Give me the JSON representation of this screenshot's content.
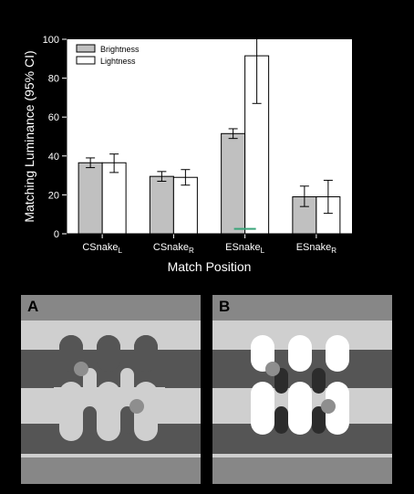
{
  "chart_data": {
    "type": "bar",
    "ylabel": "Matching Luminance (95% CI)",
    "xlabel": "Match Position",
    "ylim": [
      0,
      100
    ],
    "yticks": [
      "0",
      "20",
      "40",
      "60",
      "80",
      "100"
    ],
    "categories": [
      {
        "base": "CSnake",
        "sub": "L"
      },
      {
        "base": "CSnake",
        "sub": "R"
      },
      {
        "base": "ESnake",
        "sub": "L"
      },
      {
        "base": "ESnake",
        "sub": "R"
      }
    ],
    "series": [
      {
        "name": "Brightness",
        "color": "#c0c0c0",
        "values": [
          36.5,
          29.5,
          51.5,
          19
        ],
        "ci_low": [
          34,
          27,
          49,
          14
        ],
        "ci_high": [
          39,
          32,
          54,
          24.5
        ]
      },
      {
        "name": "Lightness",
        "color": "#ffffff",
        "values": [
          36.5,
          29,
          91.5,
          19
        ],
        "ci_low": [
          31.5,
          25,
          67,
          10.5
        ],
        "ci_high": [
          41,
          33,
          113.5,
          27.5
        ]
      }
    ],
    "reference_line": {
      "category_index": 2,
      "value": 2.5,
      "color": "#3aa57a"
    },
    "legend_position": "top-left",
    "grid": false
  },
  "panels": [
    {
      "letter": "A",
      "mode": "contrast"
    },
    {
      "letter": "B",
      "mode": "white-bumps"
    }
  ],
  "colors": {
    "background": "#000000",
    "panel_outer": "#878787",
    "light_band": "#cfcfcf",
    "dark_band": "#555555",
    "patch": "#8e8e8e",
    "bump_white": "#ffffff",
    "bump_dark_b": "#2c2c2c"
  }
}
